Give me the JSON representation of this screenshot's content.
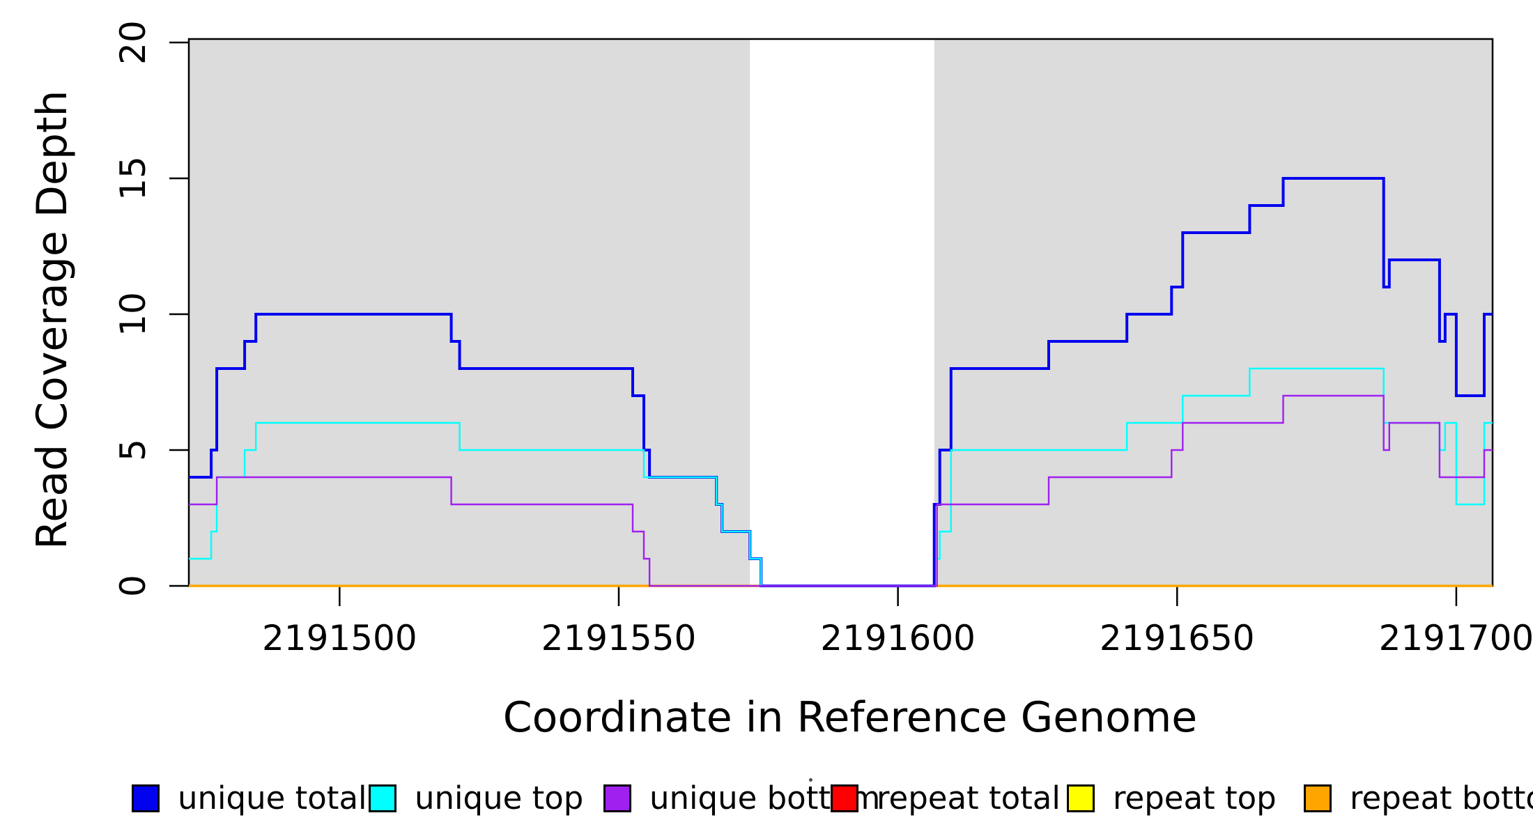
{
  "chart_data": {
    "type": "line",
    "step": true,
    "title": "",
    "xlabel": "Coordinate in Reference Genome",
    "ylabel": "Read Coverage Depth",
    "xlim": [
      2191473,
      2191706.5
    ],
    "ylim": [
      0,
      20
    ],
    "x_ticks": [
      2191500,
      2191550,
      2191600,
      2191650,
      2191700
    ],
    "y_ticks": [
      0,
      5,
      10,
      15,
      20
    ],
    "grid": false,
    "legend_position": "bottom",
    "axis_color": "#000000",
    "shaded_regions": [
      {
        "name": "covered-segment-left",
        "from": 2191473,
        "to": 2191573.5,
        "color": "#DCDCDC"
      },
      {
        "name": "covered-segment-right",
        "from": 2191606.5,
        "to": 2191706.5,
        "color": "#DCDCDC"
      }
    ],
    "draw_order": [
      3,
      4,
      5,
      0,
      1,
      2
    ],
    "series": [
      {
        "name": "unique total",
        "color": "#0202EF",
        "line_width": 4,
        "steps": [
          [
            2191473,
            4
          ],
          [
            2191477,
            5
          ],
          [
            2191478,
            8
          ],
          [
            2191483,
            9
          ],
          [
            2191485,
            10
          ],
          [
            2191520,
            9
          ],
          [
            2191521.5,
            8
          ],
          [
            2191552.5,
            7
          ],
          [
            2191554.5,
            5
          ],
          [
            2191555.5,
            4
          ],
          [
            2191567.5,
            3
          ],
          [
            2191568.5,
            2
          ],
          [
            2191573.5,
            1
          ],
          [
            2191575.5,
            0
          ],
          [
            2191606.5,
            3
          ],
          [
            2191607.5,
            5
          ],
          [
            2191609.5,
            8
          ],
          [
            2191627,
            9
          ],
          [
            2191641,
            10
          ],
          [
            2191649,
            11
          ],
          [
            2191651,
            13
          ],
          [
            2191663,
            14
          ],
          [
            2191669,
            15
          ],
          [
            2191687,
            11
          ],
          [
            2191688,
            12
          ],
          [
            2191697,
            9
          ],
          [
            2191698,
            10
          ],
          [
            2191700,
            7
          ],
          [
            2191705,
            10
          ]
        ]
      },
      {
        "name": "unique top",
        "color": "#00FFFF",
        "line_width": 2.4,
        "steps": [
          [
            2191473,
            1
          ],
          [
            2191477,
            2
          ],
          [
            2191478,
            4
          ],
          [
            2191483,
            5
          ],
          [
            2191485,
            6
          ],
          [
            2191521.5,
            5
          ],
          [
            2191554.5,
            4
          ],
          [
            2191567.5,
            3
          ],
          [
            2191568.5,
            2
          ],
          [
            2191573.5,
            1
          ],
          [
            2191575.5,
            0
          ],
          [
            2191607,
            1
          ],
          [
            2191607.5,
            2
          ],
          [
            2191609.5,
            5
          ],
          [
            2191641,
            6
          ],
          [
            2191651,
            7
          ],
          [
            2191663,
            8
          ],
          [
            2191687,
            6
          ],
          [
            2191697,
            5
          ],
          [
            2191698,
            6
          ],
          [
            2191700,
            3
          ],
          [
            2191705,
            6
          ]
        ]
      },
      {
        "name": "unique bottom",
        "color": "#A020F0",
        "line_width": 2.4,
        "steps": [
          [
            2191473,
            3
          ],
          [
            2191478,
            4
          ],
          [
            2191520,
            3
          ],
          [
            2191552.5,
            2
          ],
          [
            2191554.5,
            1
          ],
          [
            2191555.5,
            0
          ],
          [
            2191607,
            3
          ],
          [
            2191627,
            4
          ],
          [
            2191649,
            5
          ],
          [
            2191651,
            6
          ],
          [
            2191669,
            7
          ],
          [
            2191687,
            5
          ],
          [
            2191688,
            6
          ],
          [
            2191697,
            4
          ],
          [
            2191705,
            5
          ]
        ]
      },
      {
        "name": "repeat total",
        "color": "#FF0000",
        "line_width": 3,
        "steps": [
          [
            2191473,
            0
          ]
        ]
      },
      {
        "name": "repeat top",
        "color": "#FFFF00",
        "line_width": 3,
        "steps": [
          [
            2191473,
            0
          ]
        ]
      },
      {
        "name": "repeat bottom",
        "color": "#FFA500",
        "line_width": 3.5,
        "steps": [
          [
            2191473,
            0
          ]
        ]
      }
    ]
  }
}
